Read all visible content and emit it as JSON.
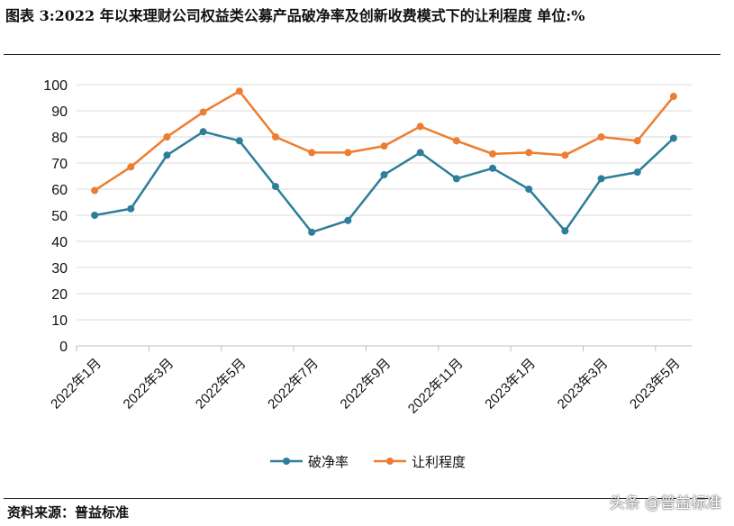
{
  "title": "图表 3:2022 年以来理财公司权益类公募产品破净率及创新收费模式下的让利程度   单位:%",
  "source": "资料来源：普益标准",
  "watermark": "头条 @普益标准",
  "chart_data": {
    "type": "line",
    "title": "",
    "xlabel": "",
    "ylabel": "",
    "ylim": [
      0,
      100
    ],
    "yticks": [
      "0",
      "10",
      "20",
      "30",
      "40",
      "50",
      "60",
      "70",
      "80",
      "90",
      "100"
    ],
    "grid": true,
    "legend": "bottom",
    "categories": [
      "2022年1月",
      "2022年2月",
      "2022年3月",
      "2022年4月",
      "2022年5月",
      "2022年6月",
      "2022年7月",
      "2022年8月",
      "2022年9月",
      "2022年10月",
      "2022年11月",
      "2022年12月",
      "2023年1月",
      "2023年2月",
      "2023年3月",
      "2023年4月",
      "2023年5月"
    ],
    "xtick_labels": [
      "2022年1月",
      "2022年3月",
      "2022年5月",
      "2022年7月",
      "2022年9月",
      "2022年11月",
      "2023年1月",
      "2023年3月",
      "2023年5月"
    ],
    "series": [
      {
        "name": "破净率",
        "color": "#2e7d9a",
        "values": [
          50,
          52.5,
          73,
          82,
          78.5,
          61,
          43.5,
          48,
          65.5,
          74,
          64,
          68,
          60,
          44,
          64,
          66.5,
          79.5
        ]
      },
      {
        "name": "让利程度",
        "color": "#ed7d31",
        "values": [
          59.5,
          68.5,
          80,
          89.5,
          97.5,
          80,
          74,
          74,
          76.5,
          84,
          78.5,
          73.5,
          74,
          73,
          80,
          78.5,
          95.5
        ]
      }
    ]
  }
}
